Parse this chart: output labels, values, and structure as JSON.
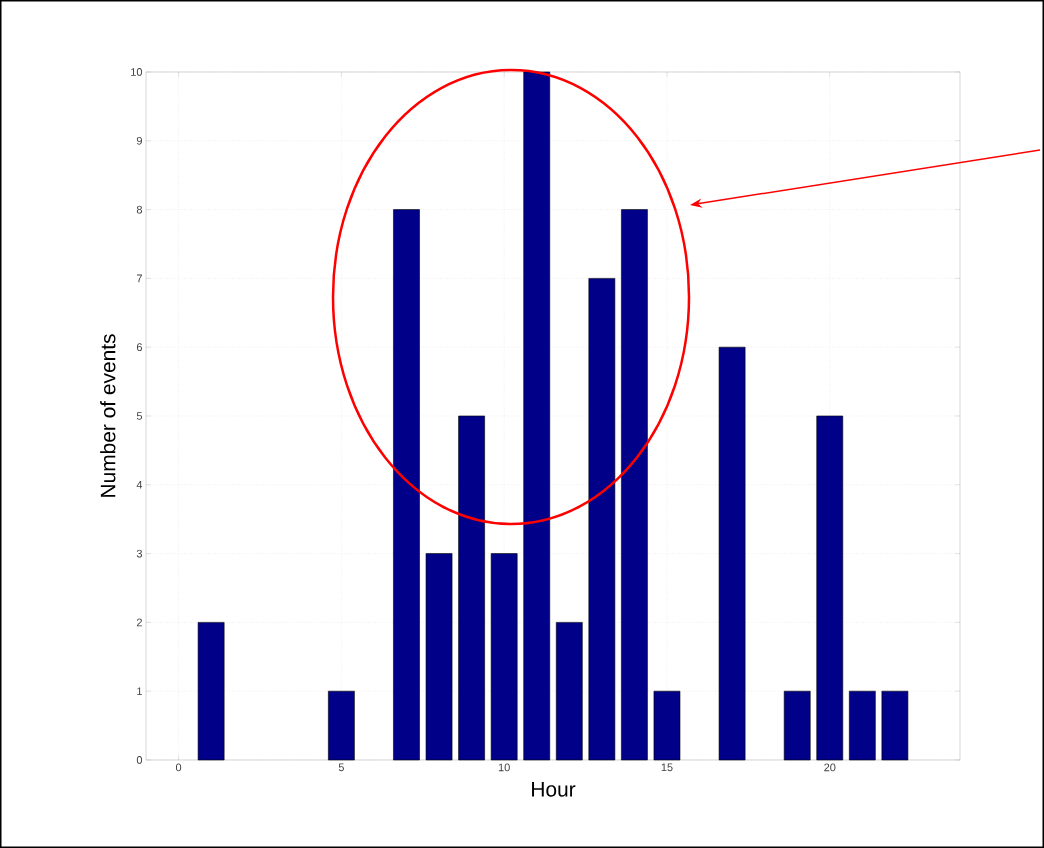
{
  "chart_data": {
    "type": "bar",
    "xlabel": "Hour",
    "ylabel": "Number of events",
    "x": [
      1,
      5,
      7,
      8,
      9,
      10,
      11,
      12,
      13,
      14,
      15,
      17,
      19,
      20,
      21,
      22
    ],
    "values": [
      2,
      1,
      8,
      3,
      5,
      3,
      10,
      2,
      7,
      8,
      1,
      6,
      1,
      5,
      1,
      1
    ],
    "color": "#000088",
    "xlim": [
      -1,
      24
    ],
    "xticks": [
      0,
      5,
      10,
      15,
      20
    ],
    "ylim": [
      0,
      10
    ],
    "yticks": [
      0,
      1,
      2,
      3,
      4,
      5,
      6,
      7,
      8,
      9,
      10
    ],
    "grid": true
  }
}
